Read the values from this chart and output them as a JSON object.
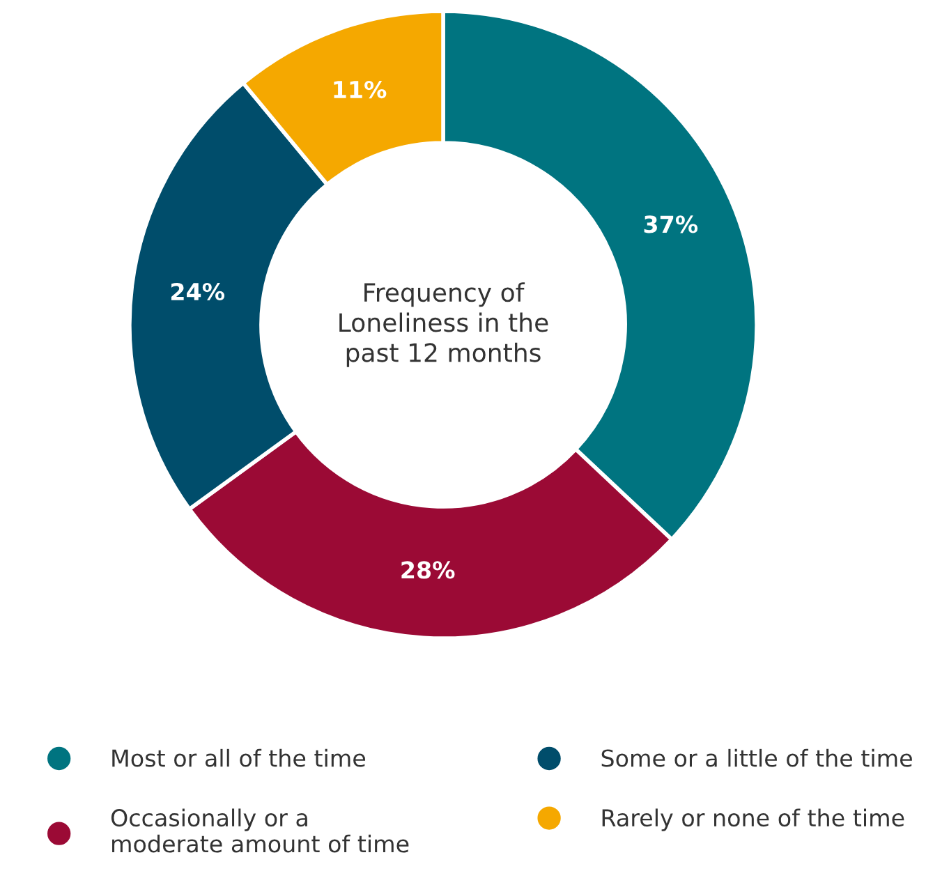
{
  "chart_data": {
    "type": "donut",
    "title": "Frequency of\nLoneliness in the\npast 12 months",
    "categories": [
      "Most or all of the time",
      "Occasionally or a\nmoderate amount of time",
      "Some or a little of the time",
      "Rarely or none of the time"
    ],
    "values": [
      37,
      28,
      24,
      11
    ],
    "value_labels": [
      "37%",
      "28%",
      "24%",
      "11%"
    ],
    "colors": [
      "#007480",
      "#9b0a35",
      "#004d6b",
      "#f5a800"
    ],
    "legend": "bottom"
  }
}
